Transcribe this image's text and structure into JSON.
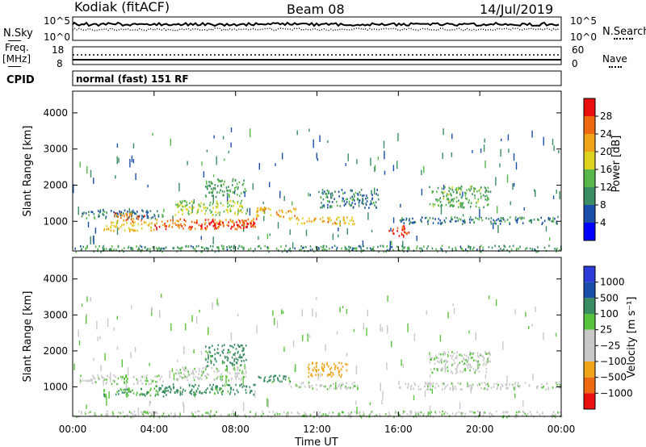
{
  "header": {
    "station": "Kodiak (fitACF)",
    "beam": "Beam 08",
    "date": "14/Jul/2019"
  },
  "top_panels": {
    "nsky_label": "N.Sky",
    "nsearch_label": "N.Search",
    "freq_label_1": "Freq.",
    "freq_label_2": "[MHz]",
    "nave_label": "Nave",
    "cpid_label": "CPID",
    "noise_ticks_left": [
      "10^5",
      "10^0"
    ],
    "noise_ticks_right": [
      "10^5",
      "10^0"
    ],
    "freq_ticks": [
      "18",
      "8"
    ],
    "nave_ticks": [
      "60",
      "0"
    ],
    "cpid_text": "normal (fast) 151 RF"
  },
  "colors": {
    "power_scale": [
      "#0000ff",
      "#1b4ea8",
      "#3a8c62",
      "#58b74b",
      "#dcd21f",
      "#f0a41a",
      "#ee6a10",
      "#ea1010"
    ],
    "velocity_scale": [
      "#ea1010",
      "#ee6a10",
      "#f0a41a",
      "#c8c8c8",
      "#c8c8c8",
      "#58c23c",
      "#3a8c62",
      "#1b4ea8",
      "#2d3bd8"
    ]
  },
  "chart_data": [
    {
      "type": "heatmap",
      "panel": "power",
      "ylabel": "Slant Range [km]",
      "yticks": [
        "1000",
        "2000",
        "3000",
        "4000"
      ],
      "ylim": [
        180,
        4600
      ],
      "xlim": [
        0,
        24
      ],
      "colorbar_label": "Power [dB]",
      "colorbar_ticks": [
        "4",
        "8",
        "12",
        "16",
        "20",
        "24",
        "28"
      ],
      "echo_regions": [
        {
          "t": [
            0.3,
            4.5
          ],
          "r": [
            1100,
            1350
          ],
          "value": 9
        },
        {
          "t": [
            1.5,
            4.0
          ],
          "r": [
            750,
            1000
          ],
          "value": 20
        },
        {
          "t": [
            2.0,
            3.5
          ],
          "r": [
            1000,
            1250
          ],
          "value": 25
        },
        {
          "t": [
            4.0,
            9.0
          ],
          "r": [
            800,
            1100
          ],
          "value": 26
        },
        {
          "t": [
            6.5,
            9.0
          ],
          "r": [
            850,
            1050
          ],
          "value": 30
        },
        {
          "t": [
            5.0,
            8.5
          ],
          "r": [
            1200,
            1600
          ],
          "value": 16
        },
        {
          "t": [
            6.5,
            8.5
          ],
          "r": [
            1700,
            2200
          ],
          "value": 12
        },
        {
          "t": [
            9.0,
            11.0
          ],
          "r": [
            1150,
            1400
          ],
          "value": 22
        },
        {
          "t": [
            10.5,
            14.0
          ],
          "r": [
            950,
            1150
          ],
          "value": 21
        },
        {
          "t": [
            12.0,
            15.0
          ],
          "r": [
            1400,
            1900
          ],
          "value": 9
        },
        {
          "t": [
            15.5,
            16.5
          ],
          "r": [
            600,
            900
          ],
          "value": 28
        },
        {
          "t": [
            17.5,
            20.5
          ],
          "r": [
            1400,
            2000
          ],
          "value": 13
        },
        {
          "t": [
            16.0,
            24.0
          ],
          "r": [
            950,
            1150
          ],
          "value": 9
        },
        {
          "t": [
            0.0,
            24.0
          ],
          "r": [
            180,
            350
          ],
          "value": 11
        }
      ]
    },
    {
      "type": "heatmap",
      "panel": "velocity",
      "ylabel": "Slant Range [km]",
      "yticks": [
        "1000",
        "2000",
        "3000",
        "4000"
      ],
      "ylim": [
        180,
        4600
      ],
      "xlim": [
        0,
        24
      ],
      "xlabel": "Time UT",
      "xticks": [
        "00:00",
        "04:00",
        "08:00",
        "12:00",
        "16:00",
        "20:00",
        "00:00"
      ],
      "colorbar_label": "Velocity [m s⁻¹]",
      "colorbar_ticks": [
        "1000",
        "500",
        "100",
        "25",
        "−25",
        "−100",
        "−500",
        "−1000"
      ],
      "echo_regions": [
        {
          "t": [
            0.3,
            4.5
          ],
          "r": [
            1100,
            1350
          ],
          "value": 10
        },
        {
          "t": [
            1.5,
            4.5
          ],
          "r": [
            750,
            1000
          ],
          "value": 80
        },
        {
          "t": [
            4.0,
            9.0
          ],
          "r": [
            800,
            1100
          ],
          "value": 150
        },
        {
          "t": [
            5.0,
            8.5
          ],
          "r": [
            1200,
            1600
          ],
          "value": 0
        },
        {
          "t": [
            6.5,
            8.5
          ],
          "r": [
            1600,
            2200
          ],
          "value": 150
        },
        {
          "t": [
            9.0,
            11.0
          ],
          "r": [
            1150,
            1350
          ],
          "value": 150
        },
        {
          "t": [
            11.5,
            13.5
          ],
          "r": [
            1300,
            1700
          ],
          "value": -400
        },
        {
          "t": [
            10.5,
            14.0
          ],
          "r": [
            950,
            1150
          ],
          "value": 0
        },
        {
          "t": [
            17.5,
            20.5
          ],
          "r": [
            1400,
            2000
          ],
          "value": 5
        },
        {
          "t": [
            16.0,
            24.0
          ],
          "r": [
            950,
            1150
          ],
          "value": -10
        },
        {
          "t": [
            0.0,
            24.0
          ],
          "r": [
            180,
            350
          ],
          "value": 10
        }
      ]
    }
  ]
}
